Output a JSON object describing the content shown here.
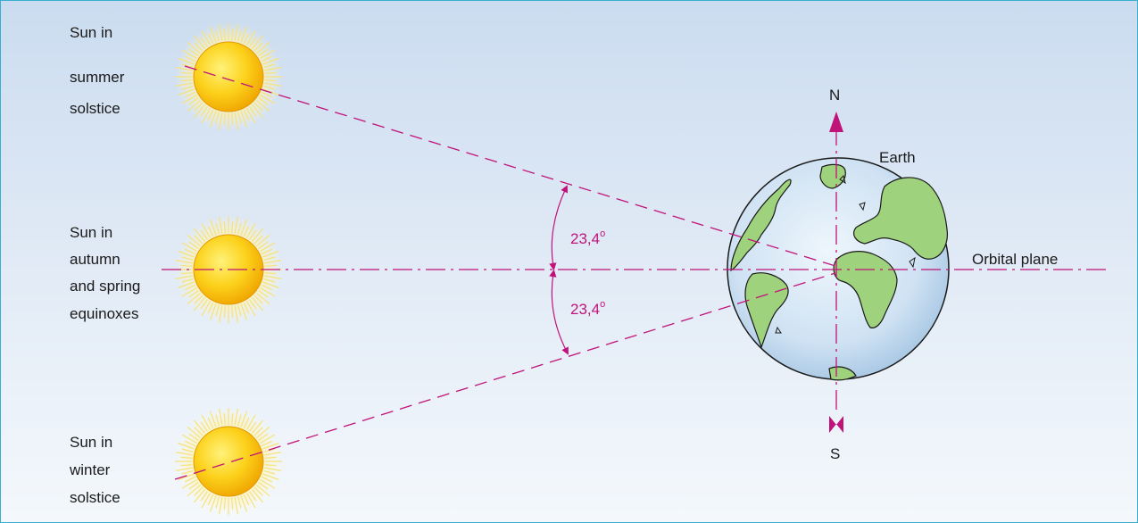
{
  "suns": {
    "summer": {
      "line1": "Sun in",
      "line2": "summer",
      "line3": "solstice"
    },
    "equinox": {
      "line1": "Sun in",
      "line2": "autumn",
      "line3": "and spring",
      "line4": "equinoxes"
    },
    "winter": {
      "line1": "Sun in",
      "line2": "winter",
      "line3": "solstice"
    }
  },
  "earth_label": "Earth",
  "north_label": "N",
  "south_label": "S",
  "orbital_plane_label": "Orbital plane",
  "angles": {
    "upper": {
      "value": "23,4",
      "unit": "o"
    },
    "lower": {
      "value": "23,4",
      "unit": "o"
    }
  },
  "colors": {
    "accent": "#c0137a",
    "sun_core": "#f6b400",
    "sun_rays": "#f7e27a",
    "land": "#9ed27c",
    "ocean": "#d6e8f6",
    "frame": "#3aaed0"
  }
}
